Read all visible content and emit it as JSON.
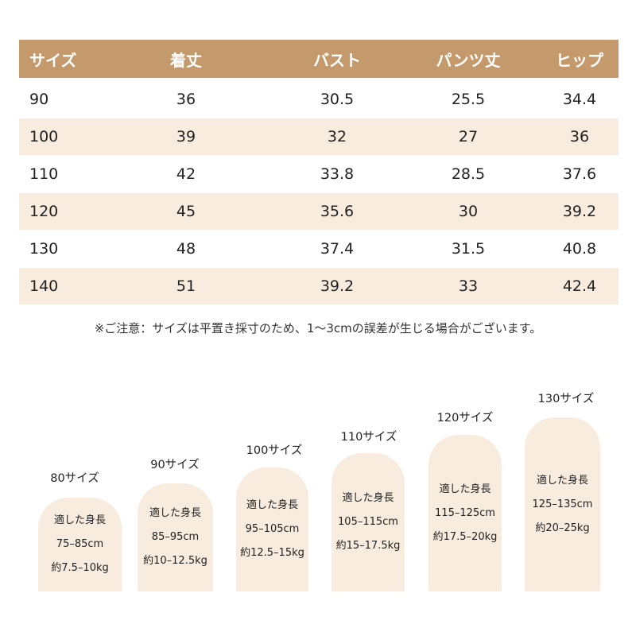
{
  "table": {
    "headers": [
      "サイズ",
      "着丈",
      "バスト",
      "パンツ丈",
      "ヒップ"
    ],
    "rows": [
      [
        "90",
        "36",
        "30.5",
        "25.5",
        "34.4"
      ],
      [
        "100",
        "39",
        "32",
        "27",
        "36"
      ],
      [
        "110",
        "42",
        "33.8",
        "28.5",
        "37.6"
      ],
      [
        "120",
        "45",
        "35.6",
        "30",
        "39.2"
      ],
      [
        "130",
        "48",
        "37.4",
        "31.5",
        "40.8"
      ],
      [
        "140",
        "51",
        "39.2",
        "33",
        "42.4"
      ]
    ]
  },
  "note": "※ご注意：サイズは平置き採寸のため、1～3cmの誤差が生じる場合がございます。",
  "figures": [
    {
      "label": "80サイズ",
      "line1": "適した身長",
      "height": "75–85cm",
      "weight": "約7.5–10kg"
    },
    {
      "label": "90サイズ",
      "line1": "適した身長",
      "height": "85–95cm",
      "weight": "約10–12.5kg"
    },
    {
      "label": "100サイズ",
      "line1": "適した身長",
      "height": "95–105cm",
      "weight": "約12.5–15kg"
    },
    {
      "label": "110サイズ",
      "line1": "適した身長",
      "height": "105–115cm",
      "weight": "約15–17.5kg"
    },
    {
      "label": "120サイズ",
      "line1": "適した身長",
      "height": "115–125cm",
      "weight": "約17.5–20kg"
    },
    {
      "label": "130サイズ",
      "line1": "適した身長",
      "height": "125–135cm",
      "weight": "約20–25kg"
    }
  ],
  "colors": {
    "header_bg": "#c49a6c",
    "row_shade": "#f7ecde",
    "header_text": "#ffffff"
  }
}
